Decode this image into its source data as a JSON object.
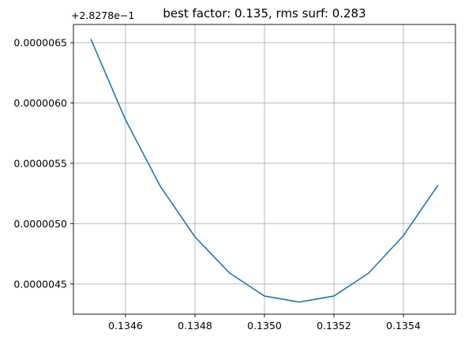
{
  "chart_data": {
    "type": "line",
    "title": "best factor: 0.135, rms surf: 0.283",
    "xlabel": "",
    "ylabel": "",
    "y_offset_label": "+2.8278e−1",
    "y_offset": 0.28278,
    "grid": true,
    "xlim": [
      0.13445,
      0.13555
    ],
    "ylim": [
      4.25e-06,
      6.65e-06
    ],
    "x_ticks": [
      0.1346,
      0.1348,
      0.135,
      0.1352,
      0.1354
    ],
    "x_tick_labels": [
      "0.1346",
      "0.1348",
      "0.1350",
      "0.1352",
      "0.1354"
    ],
    "y_ticks": [
      4.5e-06,
      5e-06,
      5.5e-06,
      6e-06,
      6.5e-06
    ],
    "y_tick_labels": [
      "0.0000045",
      "0.0000050",
      "0.0000055",
      "0.0000060",
      "0.0000065"
    ],
    "series": [
      {
        "color": "#1f77b4",
        "x": [
          0.1345,
          0.1346,
          0.1347,
          0.1348,
          0.1349,
          0.135,
          0.1351,
          0.1352,
          0.1353,
          0.1354,
          0.1355
        ],
        "y": [
          6.53e-06,
          5.86e-06,
          5.31e-06,
          4.89e-06,
          4.59e-06,
          4.4e-06,
          4.35e-06,
          4.4e-06,
          4.59e-06,
          4.9e-06,
          5.32e-06
        ]
      }
    ]
  }
}
